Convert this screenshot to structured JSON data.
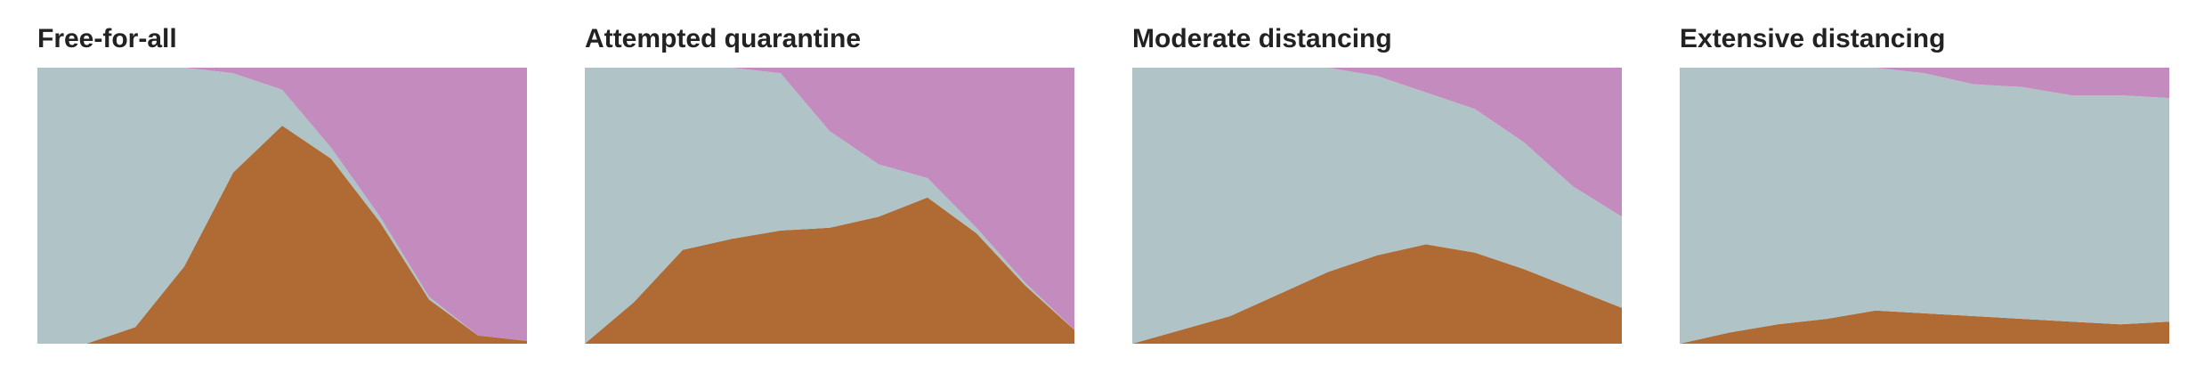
{
  "colors": {
    "healthy": "#b0c4c8",
    "sick": "#b06a33",
    "recovered": "#c48bbe"
  },
  "chart_data": [
    {
      "type": "area",
      "title": "Free-for-all",
      "stacking": "cumulative-share",
      "ylim": [
        0,
        1
      ],
      "x": [
        0,
        10,
        20,
        30,
        40,
        50,
        60,
        70,
        80,
        90,
        100
      ],
      "series": [
        {
          "key": "sick",
          "values": [
            0.0,
            0.0,
            0.06,
            0.28,
            0.62,
            0.79,
            0.67,
            0.44,
            0.16,
            0.03,
            0.01
          ]
        },
        {
          "key": "healthy",
          "values": [
            1.0,
            1.0,
            0.94,
            0.72,
            0.36,
            0.13,
            0.04,
            0.02,
            0.01,
            0.0,
            0.0
          ]
        },
        {
          "key": "recovered",
          "values": [
            0.0,
            0.0,
            0.0,
            0.0,
            0.02,
            0.08,
            0.29,
            0.54,
            0.83,
            0.97,
            0.99
          ]
        }
      ]
    },
    {
      "type": "area",
      "title": "Attempted quarantine",
      "stacking": "cumulative-share",
      "ylim": [
        0,
        1
      ],
      "x": [
        0,
        10,
        20,
        30,
        40,
        50,
        60,
        70,
        80,
        90,
        100
      ],
      "series": [
        {
          "key": "sick",
          "values": [
            0.0,
            0.15,
            0.34,
            0.38,
            0.41,
            0.42,
            0.46,
            0.53,
            0.4,
            0.21,
            0.05
          ]
        },
        {
          "key": "healthy",
          "values": [
            1.0,
            0.85,
            0.66,
            0.62,
            0.57,
            0.35,
            0.19,
            0.07,
            0.02,
            0.01,
            0.0
          ]
        },
        {
          "key": "recovered",
          "values": [
            0.0,
            0.0,
            0.0,
            0.0,
            0.02,
            0.23,
            0.35,
            0.4,
            0.58,
            0.78,
            0.95
          ]
        }
      ]
    },
    {
      "type": "area",
      "title": "Moderate distancing",
      "stacking": "cumulative-share",
      "ylim": [
        0,
        1
      ],
      "x": [
        0,
        10,
        20,
        30,
        40,
        50,
        60,
        70,
        80,
        90,
        100
      ],
      "series": [
        {
          "key": "sick",
          "values": [
            0.0,
            0.05,
            0.1,
            0.18,
            0.26,
            0.32,
            0.36,
            0.33,
            0.27,
            0.2,
            0.13
          ]
        },
        {
          "key": "healthy",
          "values": [
            1.0,
            0.95,
            0.9,
            0.82,
            0.74,
            0.65,
            0.55,
            0.52,
            0.46,
            0.37,
            0.33
          ]
        },
        {
          "key": "recovered",
          "values": [
            0.0,
            0.0,
            0.0,
            0.0,
            0.0,
            0.03,
            0.09,
            0.15,
            0.27,
            0.43,
            0.54
          ]
        }
      ]
    },
    {
      "type": "area",
      "title": "Extensive distancing",
      "stacking": "cumulative-share",
      "ylim": [
        0,
        1
      ],
      "x": [
        0,
        10,
        20,
        30,
        40,
        50,
        60,
        70,
        80,
        90,
        100
      ],
      "series": [
        {
          "key": "sick",
          "values": [
            0.0,
            0.04,
            0.07,
            0.09,
            0.12,
            0.11,
            0.1,
            0.09,
            0.08,
            0.07,
            0.08
          ]
        },
        {
          "key": "healthy",
          "values": [
            1.0,
            0.96,
            0.93,
            0.91,
            0.88,
            0.87,
            0.84,
            0.84,
            0.82,
            0.83,
            0.81
          ]
        },
        {
          "key": "recovered",
          "values": [
            0.0,
            0.0,
            0.0,
            0.0,
            0.0,
            0.02,
            0.06,
            0.07,
            0.1,
            0.1,
            0.11
          ]
        }
      ]
    }
  ]
}
